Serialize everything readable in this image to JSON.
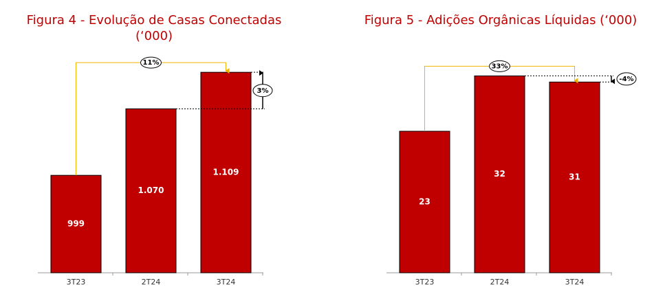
{
  "chart_data": [
    {
      "type": "bar",
      "title": "Figura 4 - Evolução de Casas Conectadas (‘000)",
      "categories": [
        "3T23",
        "2T24",
        "3T24"
      ],
      "values": [
        999,
        1070,
        1109
      ],
      "value_labels": [
        "999",
        "1.070",
        "1.109"
      ],
      "color": "#c00000",
      "ylim": [
        895,
        1115
      ],
      "annotations": [
        "11%",
        "3%"
      ]
    },
    {
      "type": "bar",
      "title": "Figura 5 - Adições Orgânicas Líquidas (‘000)",
      "categories": [
        "3T23",
        "2T24",
        "3T24"
      ],
      "values": [
        23,
        32,
        31
      ],
      "value_labels": [
        "23",
        "32",
        "31"
      ],
      "color": "#c00000",
      "ylim": [
        0,
        33.5
      ],
      "annotations": [
        "33%",
        "-4%"
      ]
    }
  ]
}
